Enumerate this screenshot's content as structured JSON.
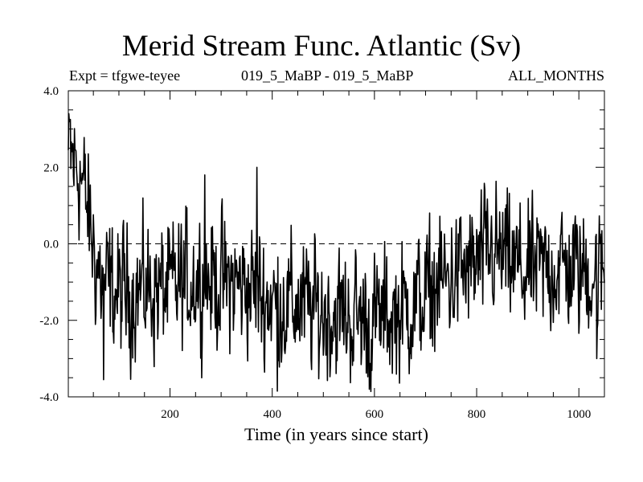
{
  "chart_data": {
    "type": "line",
    "title": "Merid Stream Func. Atlantic (Sv)",
    "subtitle_left": "Expt = tfgwe-teyee",
    "subtitle_center": "019_5_MaBP - 019_5_MaBP",
    "subtitle_right": "ALL_MONTHS",
    "xlabel": "Time (in years since start)",
    "ylabel": "",
    "xlim": [
      1,
      1050
    ],
    "ylim": [
      -4.0,
      4.0
    ],
    "xticks": [
      200,
      400,
      600,
      800,
      1000
    ],
    "xtick_labels": [
      "200",
      "400",
      "600",
      "800",
      "1000"
    ],
    "yticks": [
      -4.0,
      -2.0,
      0.0,
      2.0,
      4.0
    ],
    "ytick_labels": [
      "-4.0",
      "-2.0",
      "0.0",
      "2.0",
      "4.0"
    ],
    "zero_line": 0.0,
    "trend": {
      "x": [
        1,
        10,
        25,
        40,
        55,
        70,
        100,
        150,
        200,
        250,
        300,
        350,
        400,
        450,
        500,
        550,
        600,
        650,
        700,
        720,
        760,
        800,
        830,
        850,
        900,
        950,
        1000,
        1050
      ],
      "y": [
        2.3,
        2.2,
        1.8,
        0.8,
        -0.5,
        -1.1,
        -1.3,
        -1.2,
        -1.2,
        -0.9,
        -1.0,
        -1.1,
        -1.5,
        -1.6,
        -1.8,
        -1.9,
        -2.0,
        -1.8,
        -1.4,
        -1.1,
        -0.8,
        -0.6,
        -0.2,
        -0.4,
        -0.8,
        -0.6,
        -0.7,
        -0.8
      ]
    },
    "noise_amplitude": 0.8,
    "n_points": 1050,
    "extremes": [
      {
        "x": 5,
        "y": 3.25
      },
      {
        "x": 370,
        "y": 2.0
      },
      {
        "x": 268,
        "y": 1.8
      },
      {
        "x": 410,
        "y": -3.85
      },
      {
        "x": 590,
        "y": -3.8
      },
      {
        "x": 70,
        "y": -3.55
      },
      {
        "x": 1035,
        "y": -3.0
      }
    ]
  }
}
